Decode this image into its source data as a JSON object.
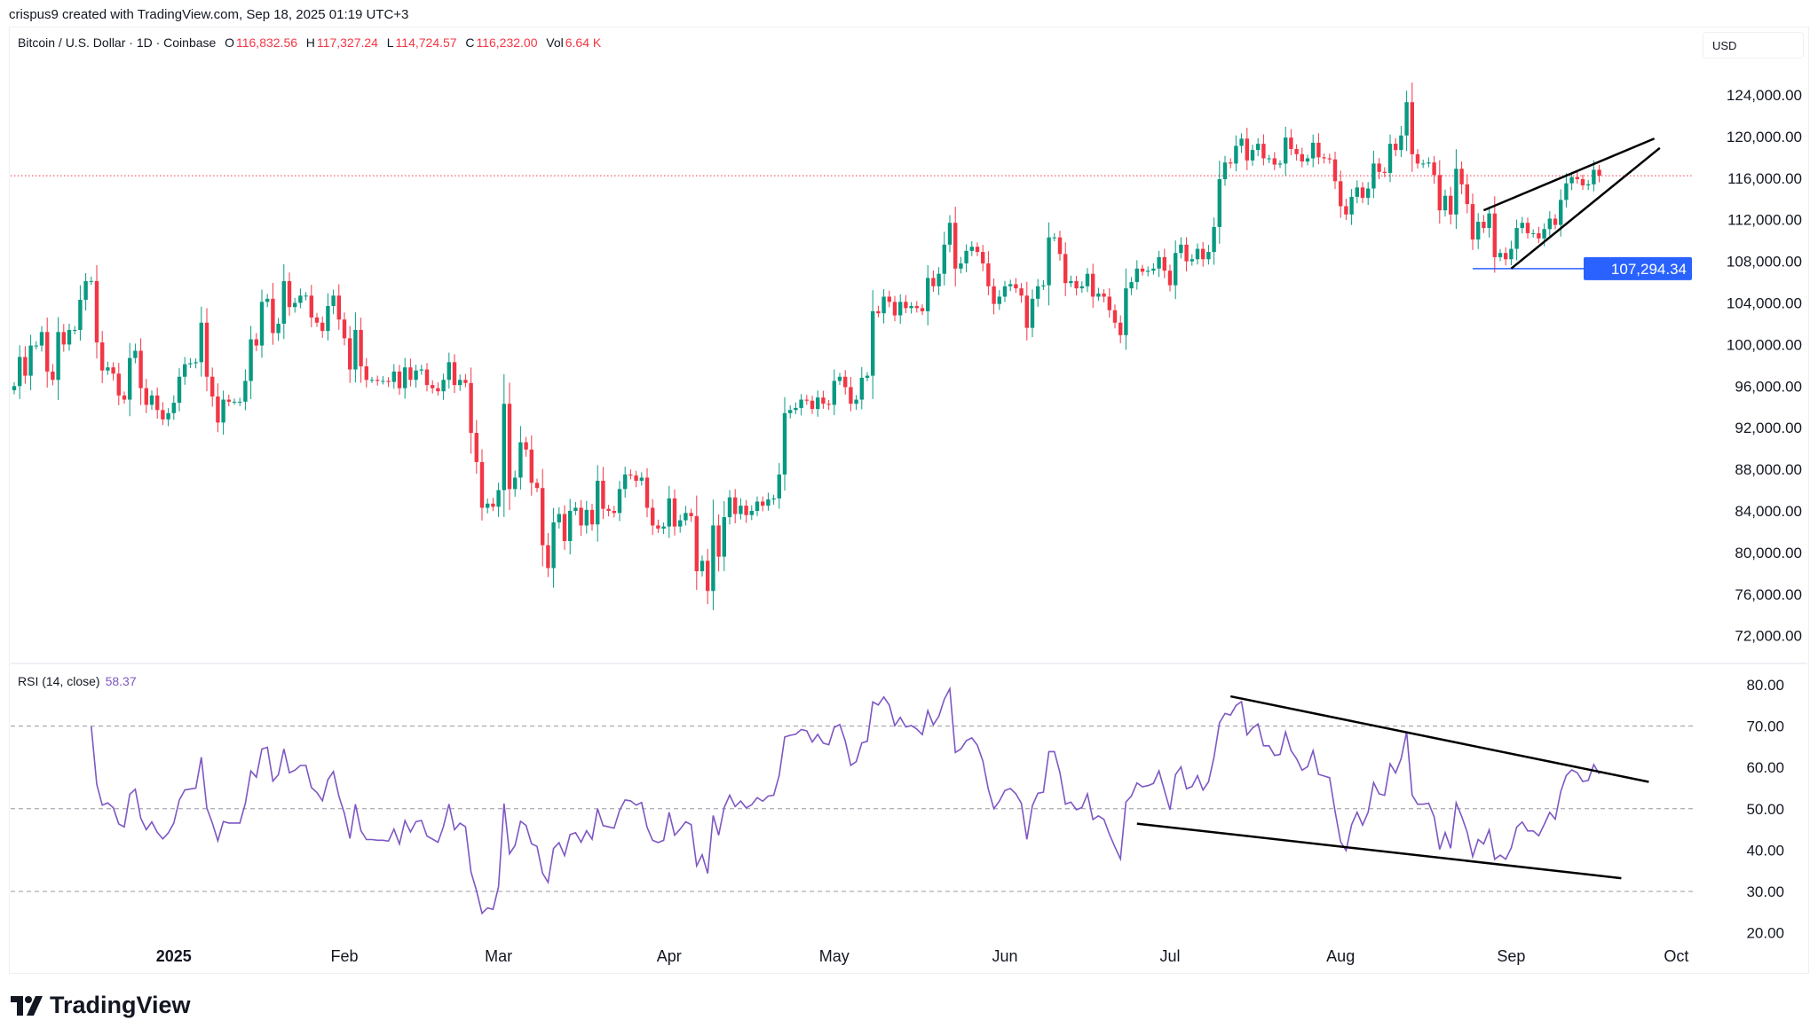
{
  "credit": "crispus9 created with TradingView.com, Sep 18, 2025 01:19 UTC+3",
  "legend": {
    "symbol": "Bitcoin / U.S. Dollar · 1D · Coinbase",
    "o_label": "O",
    "o": "116,832.56",
    "h_label": "H",
    "h": "117,327.24",
    "l_label": "L",
    "l": "114,724.57",
    "c_label": "C",
    "c": "116,232.00",
    "vol_label": "Vol",
    "vol": "6.64 K"
  },
  "currency": "USD",
  "logo": "TradingView",
  "colors": {
    "up": "#089981",
    "down": "#f23645",
    "rsi": "#7e57c2",
    "label": "#2962ff",
    "last_price_line": "#f23645"
  },
  "chart_data": [
    {
      "type": "candlestick",
      "start_date": "2024-12-03",
      "end_date": "2025-09-17",
      "interval": "1D",
      "close": [
        96000,
        98800,
        97000,
        99900,
        99900,
        101200,
        97400,
        96600,
        101200,
        100000,
        101400,
        101400,
        104300,
        106100,
        106100,
        100200,
        97500,
        97800,
        97200,
        95100,
        94700,
        98700,
        99400,
        95800,
        94200,
        95100,
        93700,
        92800,
        93400,
        94400,
        96900,
        98100,
        98200,
        98300,
        102100,
        96900,
        95000,
        92500,
        94700,
        94500,
        94500,
        94500,
        96500,
        100500,
        99900,
        104100,
        104400,
        101100,
        102000,
        106100,
        103600,
        104000,
        104700,
        104700,
        102600,
        102100,
        101300,
        103700,
        104700,
        102400,
        100600,
        97600,
        101400,
        97900,
        96600,
        96600,
        96500,
        96500,
        96400,
        97400,
        95800,
        97800,
        96600,
        97500,
        97600,
        96100,
        95800,
        95500,
        96600,
        98300,
        96100,
        96600,
        96300,
        91500,
        88700,
        84300,
        84700,
        84400,
        86000,
        94300,
        86100,
        87200,
        90600,
        89900,
        86700,
        86200,
        80700,
        78500,
        82900,
        83700,
        81100,
        84000,
        84300,
        82600,
        84100,
        82700,
        86900,
        84200,
        84000,
        83800,
        86100,
        87500,
        87400,
        86900,
        87200,
        84300,
        82600,
        82300,
        82500,
        85200,
        82500,
        83100,
        83800,
        83500,
        78200,
        79200,
        76300,
        82600,
        79600,
        83400,
        85300,
        83700,
        84500,
        83600,
        84000,
        84900,
        84500,
        85100,
        85200,
        87500,
        93400,
        93700,
        93900,
        94700,
        94600,
        93800,
        94900,
        94300,
        94200,
        96500,
        96900,
        95900,
        94300,
        94700,
        96800,
        97000,
        103200,
        103000,
        104600,
        104100,
        102800,
        104100,
        103500,
        103700,
        103500,
        103200,
        106400,
        105600,
        106800,
        109600,
        111700,
        107300,
        107800,
        109000,
        109400,
        108900,
        107800,
        105600,
        103900,
        104600,
        105600,
        105800,
        105400,
        104700,
        101600,
        104400,
        105600,
        105700,
        110300,
        110300,
        108700,
        105900,
        106100,
        105400,
        105600,
        106800,
        104600,
        104900,
        104600,
        103300,
        102100,
        100900,
        105400,
        106000,
        107300,
        107000,
        107100,
        107300,
        108400,
        107100,
        105700,
        108800,
        109600,
        108000,
        108200,
        109200,
        108200,
        108900,
        111300,
        115900,
        117500,
        117400,
        119100,
        119800,
        117700,
        118700,
        119300,
        117900,
        117900,
        117300,
        117400,
        119900,
        118800,
        118300,
        117600,
        117900,
        119400,
        118000,
        117900,
        117800,
        115700,
        113300,
        112500,
        114200,
        115100,
        114100,
        115000,
        117400,
        116600,
        116500,
        119300,
        118700,
        120100,
        123300,
        118300,
        117400,
        117400,
        117500,
        116300,
        112900,
        114300,
        112500,
        116900,
        115400,
        113500,
        110100,
        111800,
        111200,
        112600,
        108400,
        108800,
        108200,
        109200,
        111200,
        111700,
        110700,
        110700,
        110200,
        111100,
        112100,
        111500,
        113900,
        115500,
        116100,
        115900,
        115300,
        115400,
        116800,
        116232
      ],
      "last_price": 116232.0,
      "horizontal_line": {
        "price": 107294.34,
        "label": "107,294.34",
        "from": "2025-08-25"
      },
      "trendlines": [
        {
          "from": [
            "2025-08-27",
            112900
          ],
          "to": [
            "2025-09-27",
            119800
          ]
        },
        {
          "from": [
            "2025-09-01",
            107300
          ],
          "to": [
            "2025-09-28",
            118900
          ]
        }
      ],
      "y_ticks": [
        "124,000.00",
        "120,000.00",
        "116,000.00",
        "112,000.00",
        "108,000.00",
        "104,000.00",
        "100,000.00",
        "96,000.00",
        "92,000.00",
        "88,000.00",
        "84,000.00",
        "80,000.00",
        "76,000.00",
        "72,000.00"
      ],
      "ylim": [
        72000,
        124000
      ]
    },
    {
      "type": "line",
      "title": "RSI (14, close)",
      "current_value": "58.37",
      "bands": [
        70,
        50,
        30
      ],
      "ylim": [
        20,
        80
      ],
      "y_ticks": [
        "80.00",
        "70.00",
        "60.00",
        "50.00",
        "40.00",
        "30.00",
        "20.00"
      ],
      "trendlines": [
        {
          "from": [
            "2025-07-12",
            77.2
          ],
          "to": [
            "2025-09-26",
            56.5
          ]
        },
        {
          "from": [
            "2025-06-25",
            46.4
          ],
          "to": [
            "2025-09-21",
            33.2
          ]
        }
      ]
    }
  ],
  "x_ticks": [
    {
      "label": "2025",
      "date": "2025-01-01",
      "bold": true
    },
    {
      "label": "Feb",
      "date": "2025-02-01"
    },
    {
      "label": "Mar",
      "date": "2025-03-01"
    },
    {
      "label": "Apr",
      "date": "2025-04-01"
    },
    {
      "label": "May",
      "date": "2025-05-01"
    },
    {
      "label": "Jun",
      "date": "2025-06-01"
    },
    {
      "label": "Jul",
      "date": "2025-07-01"
    },
    {
      "label": "Aug",
      "date": "2025-08-01"
    },
    {
      "label": "Sep",
      "date": "2025-09-01"
    },
    {
      "label": "Oct",
      "date": "2025-10-01"
    }
  ]
}
